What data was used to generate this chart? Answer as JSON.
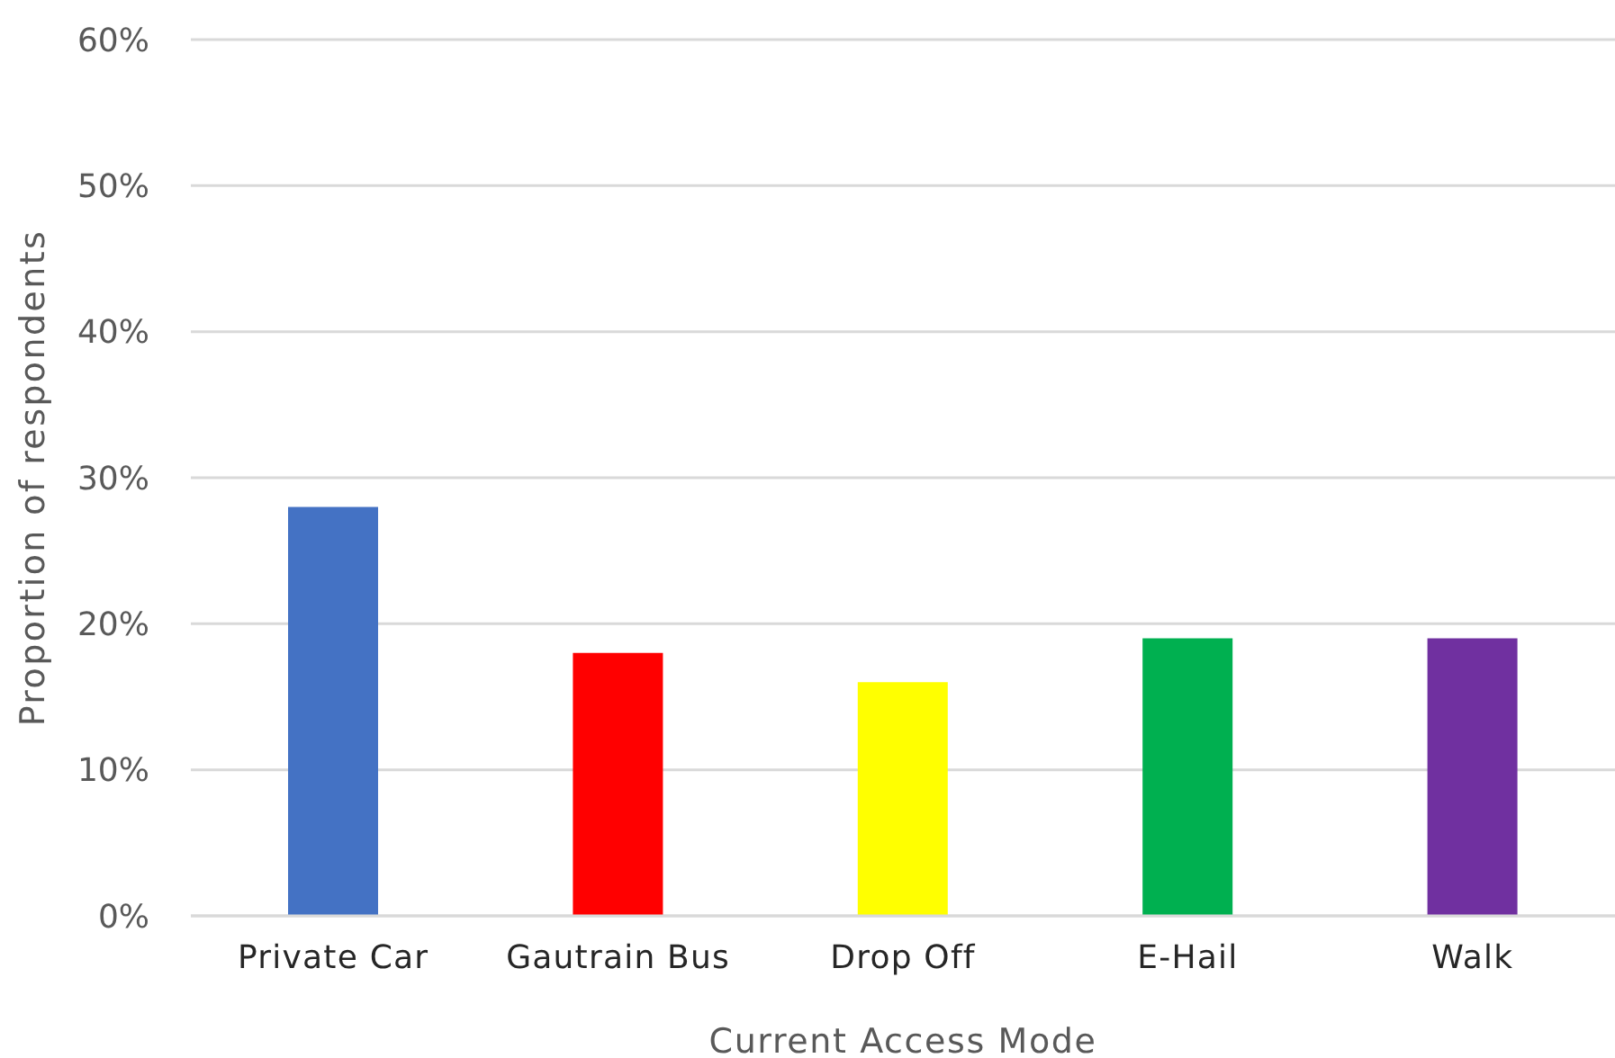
{
  "chart_data": {
    "type": "bar",
    "xlabel": "Current Access Mode",
    "ylabel": "Proportion of respondents",
    "categories": [
      "Private Car",
      "Gautrain Bus",
      "Drop Off",
      "E-Hail",
      "Walk"
    ],
    "values": [
      28,
      18,
      16,
      19,
      19
    ],
    "colors": [
      "#4472c4",
      "#ff0000",
      "#ffff00",
      "#00b050",
      "#7030a0"
    ],
    "ylim": [
      0,
      60
    ],
    "yticks": [
      {
        "value": 0,
        "label": "0%"
      },
      {
        "value": 10,
        "label": "10%"
      },
      {
        "value": 20,
        "label": "20%"
      },
      {
        "value": 30,
        "label": "30%"
      },
      {
        "value": 40,
        "label": "40%"
      },
      {
        "value": 50,
        "label": "50%"
      },
      {
        "value": 60,
        "label": "60%"
      }
    ],
    "grid": "y"
  }
}
